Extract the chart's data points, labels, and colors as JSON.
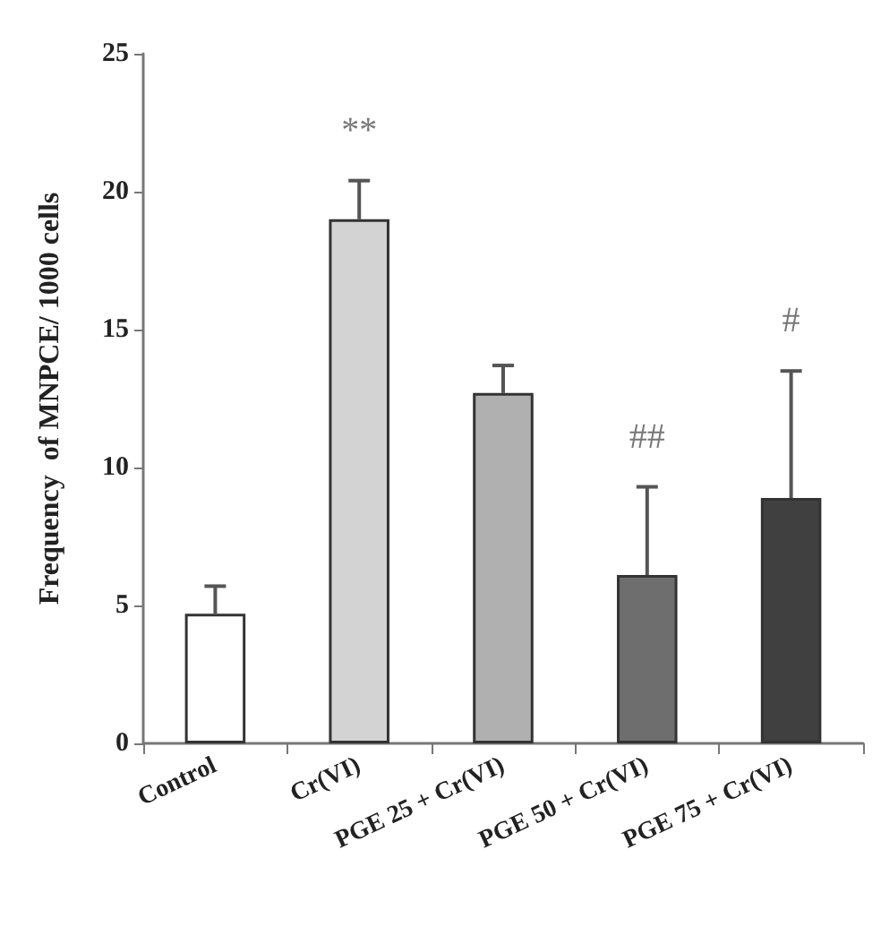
{
  "chart_data": {
    "type": "bar",
    "ylabel": "Frequency  of MNPCE/ 1000 cells",
    "categories": [
      "Control",
      "Cr(VI)",
      "PGE 25 + Cr(VI)",
      "PGE 50 + Cr(VI)",
      "PGE 75 + Cr(VI)"
    ],
    "values": [
      4.7,
      19.0,
      12.7,
      6.1,
      8.9
    ],
    "colors": [
      "#ffffff",
      "#d3d3d3",
      "#b0b0b0",
      "#6e6e6e",
      "#404040"
    ],
    "errors": [
      [
        4.7,
        5.7
      ],
      [
        19.0,
        20.4
      ],
      [
        12.7,
        13.7
      ],
      [
        6.1,
        9.3
      ],
      [
        8.9,
        13.5
      ]
    ],
    "ylim": [
      0,
      25
    ],
    "yticks": [
      0,
      5,
      10,
      15,
      20,
      25
    ],
    "grid": false,
    "annotations": [
      {
        "text": "**",
        "x": "Cr(VI)",
        "y": 20.4
      },
      {
        "text": "##",
        "x": "PGE 50 + Cr(VI)",
        "y": 9.3
      },
      {
        "text": "#",
        "x": "PGE 75 + Cr(VI)",
        "y": 13.5
      }
    ]
  }
}
